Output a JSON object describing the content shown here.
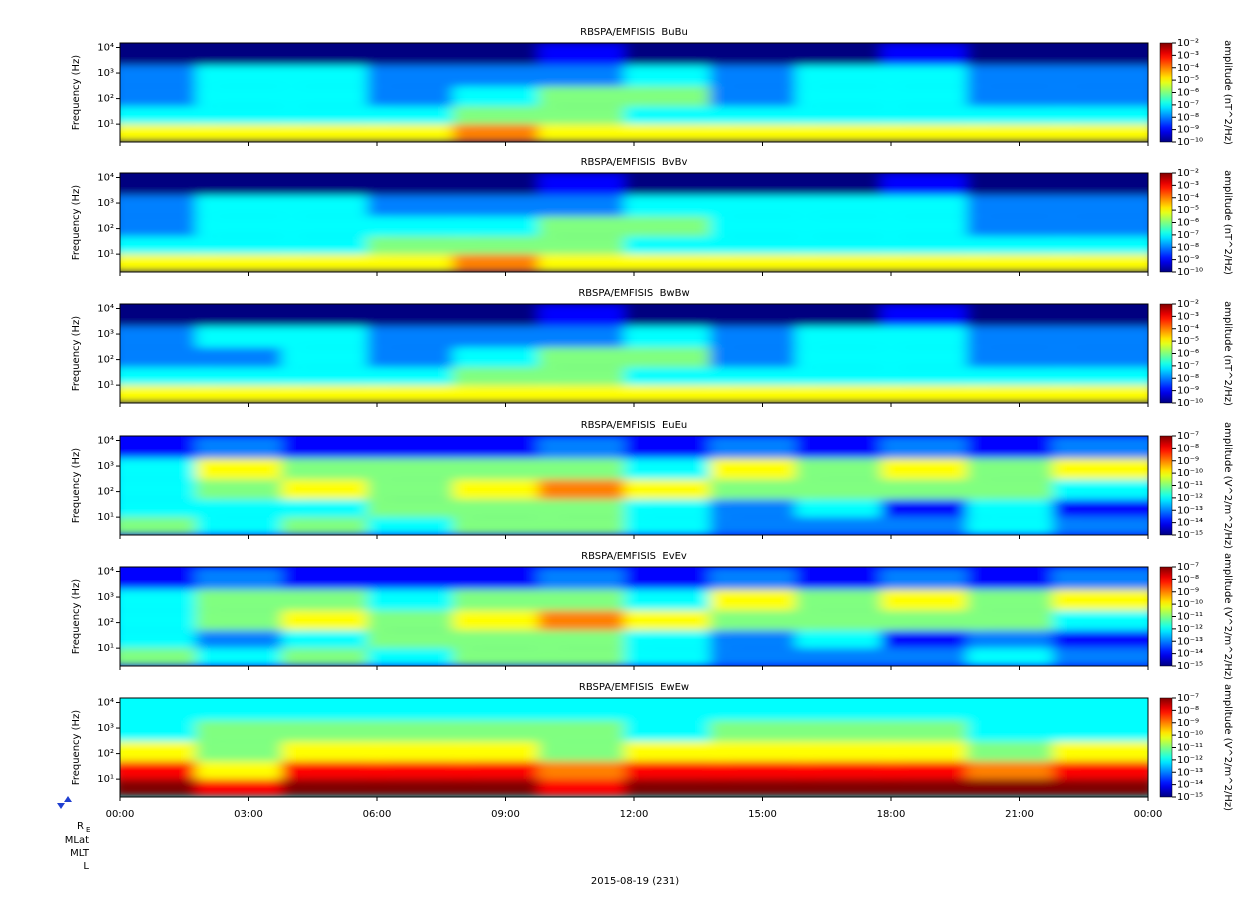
{
  "chart_data": [
    {
      "type": "spectrogram",
      "title": "RBSPA/EMFISIS  BuBu",
      "ylabel": "Frequency (Hz)",
      "colorbar_label": "amplitude (nT^2/Hz)",
      "log_y": true,
      "colormap": "jet",
      "ylim": [
        2,
        15000
      ],
      "yticks": [
        {
          "value": 10,
          "label": "10¹"
        },
        {
          "value": 100,
          "label": "10²"
        },
        {
          "value": 1000,
          "label": "10³"
        },
        {
          "value": 10000,
          "label": "10⁴"
        }
      ],
      "zlim": [
        1e-10,
        0.01
      ],
      "zticks": [
        {
          "value": 0.01,
          "label": "10⁻²"
        },
        {
          "value": 0.001,
          "label": "10⁻³"
        },
        {
          "value": 0.0001,
          "label": "10⁻⁴"
        },
        {
          "value": 1e-05,
          "label": "10⁻⁵"
        },
        {
          "value": 1e-06,
          "label": "10⁻⁶"
        },
        {
          "value": 1e-07,
          "label": "10⁻⁷"
        },
        {
          "value": 1e-08,
          "label": "10⁻⁸"
        },
        {
          "value": 1e-09,
          "label": "10⁻⁹"
        },
        {
          "value": 1e-10,
          "label": "10⁻¹⁰"
        }
      ],
      "xbins": [
        0,
        2,
        4,
        6,
        8,
        10,
        12,
        14,
        16,
        18,
        20,
        22,
        24
      ],
      "ybins": [
        2,
        10,
        50,
        300,
        2000,
        15000
      ],
      "z": [
        [
          1e-05,
          1e-05,
          1e-05,
          1e-05,
          0.0001,
          1e-05,
          1e-05,
          1e-05,
          1e-05,
          1e-05,
          1e-05,
          1e-05
        ],
        [
          1e-07,
          1e-07,
          1e-07,
          1e-07,
          1e-06,
          1e-06,
          1e-07,
          1e-07,
          1e-07,
          1e-07,
          1e-07,
          1e-07
        ],
        [
          1e-08,
          1e-07,
          1e-07,
          1e-08,
          1e-07,
          1e-06,
          1e-06,
          1e-08,
          1e-07,
          1e-07,
          1e-08,
          1e-08
        ],
        [
          1e-08,
          1e-07,
          1e-07,
          1e-08,
          1e-08,
          1e-08,
          1e-07,
          1e-08,
          1e-07,
          1e-07,
          1e-08,
          1e-08
        ],
        [
          1e-10,
          1e-10,
          1e-10,
          1e-10,
          1e-10,
          1e-09,
          1e-10,
          1e-10,
          1e-10,
          1e-09,
          1e-10,
          1e-10
        ]
      ]
    },
    {
      "type": "spectrogram",
      "title": "RBSPA/EMFISIS  BvBv",
      "ylabel": "Frequency (Hz)",
      "colorbar_label": "amplitude (nT^2/Hz)",
      "log_y": true,
      "colormap": "jet",
      "ylim": [
        2,
        15000
      ],
      "yticks": [
        {
          "value": 10,
          "label": "10¹"
        },
        {
          "value": 100,
          "label": "10²"
        },
        {
          "value": 1000,
          "label": "10³"
        },
        {
          "value": 10000,
          "label": "10⁴"
        }
      ],
      "zlim": [
        1e-10,
        0.01
      ],
      "zticks": [
        {
          "value": 0.01,
          "label": "10⁻²"
        },
        {
          "value": 0.001,
          "label": "10⁻³"
        },
        {
          "value": 0.0001,
          "label": "10⁻⁴"
        },
        {
          "value": 1e-05,
          "label": "10⁻⁵"
        },
        {
          "value": 1e-06,
          "label": "10⁻⁶"
        },
        {
          "value": 1e-07,
          "label": "10⁻⁷"
        },
        {
          "value": 1e-08,
          "label": "10⁻⁸"
        },
        {
          "value": 1e-09,
          "label": "10⁻⁹"
        },
        {
          "value": 1e-10,
          "label": "10⁻¹⁰"
        }
      ],
      "xbins": [
        0,
        2,
        4,
        6,
        8,
        10,
        12,
        14,
        16,
        18,
        20,
        22,
        24
      ],
      "ybins": [
        2,
        10,
        50,
        300,
        2000,
        15000
      ],
      "z": [
        [
          1e-05,
          1e-05,
          1e-05,
          1e-05,
          0.0001,
          1e-05,
          1e-05,
          1e-05,
          1e-05,
          1e-05,
          1e-05,
          1e-05
        ],
        [
          1e-07,
          1e-07,
          1e-07,
          1e-06,
          1e-06,
          1e-06,
          1e-07,
          1e-07,
          1e-07,
          1e-07,
          1e-07,
          1e-07
        ],
        [
          1e-08,
          1e-07,
          1e-07,
          1e-07,
          1e-07,
          1e-06,
          1e-06,
          1e-07,
          1e-07,
          1e-07,
          1e-08,
          1e-08
        ],
        [
          1e-08,
          1e-07,
          1e-07,
          1e-08,
          1e-08,
          1e-08,
          1e-07,
          1e-07,
          1e-07,
          1e-07,
          1e-08,
          1e-08
        ],
        [
          1e-10,
          1e-10,
          1e-10,
          1e-10,
          1e-10,
          1e-09,
          1e-10,
          1e-10,
          1e-10,
          1e-09,
          1e-10,
          1e-10
        ]
      ]
    },
    {
      "type": "spectrogram",
      "title": "RBSPA/EMFISIS  BwBw",
      "ylabel": "Frequency (Hz)",
      "colorbar_label": "amplitude (nT^2/Hz)",
      "log_y": true,
      "colormap": "jet",
      "ylim": [
        2,
        15000
      ],
      "yticks": [
        {
          "value": 10,
          "label": "10¹"
        },
        {
          "value": 100,
          "label": "10²"
        },
        {
          "value": 1000,
          "label": "10³"
        },
        {
          "value": 10000,
          "label": "10⁴"
        }
      ],
      "zlim": [
        1e-10,
        0.01
      ],
      "zticks": [
        {
          "value": 0.01,
          "label": "10⁻²"
        },
        {
          "value": 0.001,
          "label": "10⁻³"
        },
        {
          "value": 0.0001,
          "label": "10⁻⁴"
        },
        {
          "value": 1e-05,
          "label": "10⁻⁵"
        },
        {
          "value": 1e-06,
          "label": "10⁻⁶"
        },
        {
          "value": 1e-07,
          "label": "10⁻⁷"
        },
        {
          "value": 1e-08,
          "label": "10⁻⁸"
        },
        {
          "value": 1e-09,
          "label": "10⁻⁹"
        },
        {
          "value": 1e-10,
          "label": "10⁻¹⁰"
        }
      ],
      "xbins": [
        0,
        2,
        4,
        6,
        8,
        10,
        12,
        14,
        16,
        18,
        20,
        22,
        24
      ],
      "ybins": [
        2,
        10,
        50,
        300,
        2000,
        15000
      ],
      "z": [
        [
          1e-05,
          1e-05,
          1e-05,
          1e-05,
          1e-05,
          1e-05,
          1e-05,
          1e-05,
          1e-05,
          1e-05,
          1e-05,
          1e-05
        ],
        [
          1e-07,
          1e-07,
          1e-07,
          1e-07,
          1e-06,
          1e-06,
          1e-07,
          1e-07,
          1e-07,
          1e-07,
          1e-07,
          1e-07
        ],
        [
          1e-08,
          1e-08,
          1e-07,
          1e-08,
          1e-07,
          1e-06,
          1e-06,
          1e-08,
          1e-07,
          1e-07,
          1e-08,
          1e-08
        ],
        [
          1e-08,
          1e-07,
          1e-07,
          1e-08,
          1e-08,
          1e-08,
          1e-07,
          1e-08,
          1e-07,
          1e-07,
          1e-08,
          1e-08
        ],
        [
          1e-10,
          1e-10,
          1e-10,
          1e-10,
          1e-10,
          1e-09,
          1e-10,
          1e-10,
          1e-10,
          1e-09,
          1e-10,
          1e-10
        ]
      ]
    },
    {
      "type": "spectrogram",
      "title": "RBSPA/EMFISIS  EuEu",
      "ylabel": "Frequency (Hz)",
      "colorbar_label": "amplitude (V^2/m^2/Hz)",
      "log_y": true,
      "colormap": "jet",
      "ylim": [
        2,
        15000
      ],
      "yticks": [
        {
          "value": 10,
          "label": "10¹"
        },
        {
          "value": 100,
          "label": "10²"
        },
        {
          "value": 1000,
          "label": "10³"
        },
        {
          "value": 10000,
          "label": "10⁴"
        }
      ],
      "zlim": [
        1e-15,
        1e-07
      ],
      "zticks": [
        {
          "value": 1e-07,
          "label": "10⁻⁷"
        },
        {
          "value": 1e-08,
          "label": "10⁻⁸"
        },
        {
          "value": 1e-09,
          "label": "10⁻⁹"
        },
        {
          "value": 1e-10,
          "label": "10⁻¹⁰"
        },
        {
          "value": 1e-11,
          "label": "10⁻¹¹"
        },
        {
          "value": 1e-12,
          "label": "10⁻¹²"
        },
        {
          "value": 1e-13,
          "label": "10⁻¹³"
        },
        {
          "value": 1e-14,
          "label": "10⁻¹⁴"
        },
        {
          "value": 1e-15,
          "label": "10⁻¹⁵"
        }
      ],
      "xbins": [
        0,
        2,
        4,
        6,
        8,
        10,
        12,
        14,
        16,
        18,
        20,
        22,
        24
      ],
      "ybins": [
        2,
        10,
        50,
        300,
        2000,
        15000
      ],
      "z": [
        [
          1e-11,
          1e-12,
          1e-11,
          1e-12,
          1e-11,
          1e-11,
          1e-12,
          1e-13,
          1e-13,
          1e-13,
          1e-12,
          1e-13
        ],
        [
          1e-12,
          1e-12,
          1e-12,
          1e-11,
          1e-11,
          1e-11,
          1e-12,
          1e-13,
          1e-12,
          1e-14,
          1e-12,
          1e-14
        ],
        [
          1e-12,
          1e-11,
          1e-10,
          1e-11,
          1e-10,
          1e-09,
          1e-10,
          1e-11,
          1e-11,
          1e-11,
          1e-11,
          1e-12
        ],
        [
          1e-12,
          1e-10,
          1e-11,
          1e-11,
          1e-11,
          1e-11,
          1e-12,
          1e-10,
          1e-11,
          1e-10,
          1e-11,
          1e-10
        ],
        [
          1e-14,
          1e-13,
          1e-14,
          1e-14,
          1e-14,
          1e-13,
          1e-14,
          1e-13,
          1e-14,
          1e-13,
          1e-14,
          1e-13
        ]
      ]
    },
    {
      "type": "spectrogram",
      "title": "RBSPA/EMFISIS  EvEv",
      "ylabel": "Frequency (Hz)",
      "colorbar_label": "amplitude (V^2/m^2/Hz)",
      "log_y": true,
      "colormap": "jet",
      "ylim": [
        2,
        15000
      ],
      "yticks": [
        {
          "value": 10,
          "label": "10¹"
        },
        {
          "value": 100,
          "label": "10²"
        },
        {
          "value": 1000,
          "label": "10³"
        },
        {
          "value": 10000,
          "label": "10⁴"
        }
      ],
      "zlim": [
        1e-15,
        1e-07
      ],
      "zticks": [
        {
          "value": 1e-07,
          "label": "10⁻⁷"
        },
        {
          "value": 1e-08,
          "label": "10⁻⁸"
        },
        {
          "value": 1e-09,
          "label": "10⁻⁹"
        },
        {
          "value": 1e-10,
          "label": "10⁻¹⁰"
        },
        {
          "value": 1e-11,
          "label": "10⁻¹¹"
        },
        {
          "value": 1e-12,
          "label": "10⁻¹²"
        },
        {
          "value": 1e-13,
          "label": "10⁻¹³"
        },
        {
          "value": 1e-14,
          "label": "10⁻¹⁴"
        },
        {
          "value": 1e-15,
          "label": "10⁻¹⁵"
        }
      ],
      "xbins": [
        0,
        2,
        4,
        6,
        8,
        10,
        12,
        14,
        16,
        18,
        20,
        22,
        24
      ],
      "ybins": [
        2,
        10,
        50,
        300,
        2000,
        15000
      ],
      "z": [
        [
          1e-11,
          1e-12,
          1e-11,
          1e-12,
          1e-11,
          1e-11,
          1e-12,
          1e-13,
          1e-13,
          1e-13,
          1e-12,
          1e-13
        ],
        [
          1e-12,
          1e-13,
          1e-12,
          1e-11,
          1e-11,
          1e-11,
          1e-12,
          1e-13,
          1e-12,
          1e-14,
          1e-13,
          1e-14
        ],
        [
          1e-12,
          1e-11,
          1e-10,
          1e-11,
          1e-10,
          1e-09,
          1e-10,
          1e-11,
          1e-11,
          1e-11,
          1e-11,
          1e-12
        ],
        [
          1e-12,
          1e-11,
          1e-11,
          1e-12,
          1e-11,
          1e-11,
          1e-12,
          1e-10,
          1e-11,
          1e-10,
          1e-11,
          1e-10
        ],
        [
          1e-14,
          1e-13,
          1e-14,
          1e-14,
          1e-14,
          1e-13,
          1e-14,
          1e-13,
          1e-14,
          1e-13,
          1e-14,
          1e-13
        ]
      ]
    },
    {
      "type": "spectrogram",
      "title": "RBSPA/EMFISIS  EwEw",
      "ylabel": "Frequency (Hz)",
      "colorbar_label": "amplitude (V^2/m^2/Hz)",
      "log_y": true,
      "colormap": "jet",
      "ylim": [
        2,
        15000
      ],
      "yticks": [
        {
          "value": 10,
          "label": "10¹"
        },
        {
          "value": 100,
          "label": "10²"
        },
        {
          "value": 1000,
          "label": "10³"
        },
        {
          "value": 10000,
          "label": "10⁴"
        }
      ],
      "zlim": [
        1e-15,
        1e-07
      ],
      "zticks": [
        {
          "value": 1e-07,
          "label": "10⁻⁷"
        },
        {
          "value": 1e-08,
          "label": "10⁻⁸"
        },
        {
          "value": 1e-09,
          "label": "10⁻⁹"
        },
        {
          "value": 1e-10,
          "label": "10⁻¹⁰"
        },
        {
          "value": 1e-11,
          "label": "10⁻¹¹"
        },
        {
          "value": 1e-12,
          "label": "10⁻¹²"
        },
        {
          "value": 1e-13,
          "label": "10⁻¹³"
        },
        {
          "value": 1e-14,
          "label": "10⁻¹⁴"
        },
        {
          "value": 1e-15,
          "label": "10⁻¹⁵"
        }
      ],
      "xbins": [
        0,
        2,
        4,
        6,
        8,
        10,
        12,
        14,
        16,
        18,
        20,
        22,
        24
      ],
      "ybins": [
        2,
        10,
        50,
        300,
        2000,
        15000
      ],
      "z": [
        [
          1e-07,
          1e-08,
          1e-07,
          1e-07,
          1e-07,
          1e-08,
          1e-07,
          1e-07,
          1e-07,
          1e-07,
          1e-07,
          1e-07
        ],
        [
          1e-08,
          1e-10,
          1e-08,
          1e-08,
          1e-08,
          1e-09,
          1e-08,
          1e-08,
          1e-08,
          1e-08,
          1e-09,
          1e-08
        ],
        [
          1e-10,
          1e-11,
          1e-10,
          1e-10,
          1e-10,
          1e-11,
          1e-10,
          1e-10,
          1e-10,
          1e-10,
          1e-11,
          1e-10
        ],
        [
          1e-12,
          1e-11,
          1e-11,
          1e-11,
          1e-11,
          1e-11,
          1e-12,
          1e-11,
          1e-11,
          1e-11,
          1e-12,
          1e-12
        ],
        [
          1e-12,
          1e-12,
          1e-12,
          1e-12,
          1e-12,
          1e-12,
          1e-12,
          1e-12,
          1e-12,
          1e-12,
          1e-12,
          1e-12
        ]
      ]
    }
  ],
  "time_axis": {
    "xlim": [
      0,
      24
    ],
    "xticks": [
      {
        "value": 0,
        "label": "00:00"
      },
      {
        "value": 3,
        "label": "03:00"
      },
      {
        "value": 6,
        "label": "06:00"
      },
      {
        "value": 9,
        "label": "09:00"
      },
      {
        "value": 12,
        "label": "12:00"
      },
      {
        "value": 15,
        "label": "15:00"
      },
      {
        "value": 18,
        "label": "18:00"
      },
      {
        "value": 21,
        "label": "21:00"
      },
      {
        "value": 24,
        "label": "00:00"
      }
    ],
    "date_label": "2015-08-19 (231)"
  },
  "ephemeris": {
    "re": {
      "text": "R",
      "sub": "E"
    },
    "labels": [
      "MLat",
      "MLT",
      "L"
    ]
  }
}
